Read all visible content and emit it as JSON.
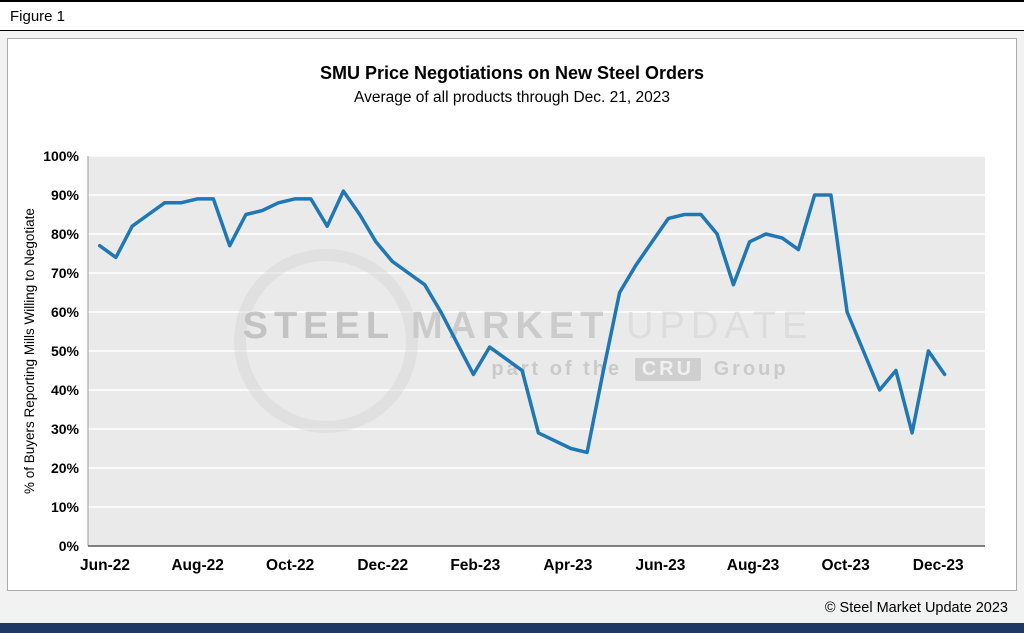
{
  "figure_label": "Figure 1",
  "copyright": "© Steel Market Update 2023",
  "watermark": {
    "word1": "STEEL",
    "word2": "MARKET",
    "word3": "UPDATE",
    "line2_pre": "part of the",
    "badge": "CRU",
    "line2_post": "Group"
  },
  "colors": {
    "line": "#1F77B4",
    "plot_bg": "#EAEAEA",
    "grid": "#FFFFFF",
    "axis": "#595959",
    "footer_bar": "#1F3864",
    "watermark_gray": "#C8C8C8"
  },
  "chart_data": {
    "type": "line",
    "title": "SMU Price Negotiations on New Steel Orders",
    "subtitle": "Average of all products through Dec. 21, 2023",
    "xlabel": "",
    "ylabel": "% of Buyers Reporting Mills Willing to Negotiate",
    "ylim": [
      0,
      100
    ],
    "ytick_step": 10,
    "ytick_suffix": "%",
    "grid": true,
    "legend": false,
    "x_tick_labels": [
      "Jun-22",
      "Aug-22",
      "Oct-22",
      "Dec-22",
      "Feb-23",
      "Apr-23",
      "Jun-23",
      "Aug-23",
      "Oct-23",
      "Dec-23"
    ],
    "series": [
      {
        "name": "% of buyers reporting mills willing to negotiate",
        "values": [
          77,
          74,
          82,
          85,
          88,
          88,
          89,
          89,
          77,
          85,
          86,
          88,
          89,
          89,
          82,
          91,
          85,
          78,
          73,
          70,
          67,
          60,
          52,
          44,
          51,
          48,
          45,
          29,
          27,
          25,
          24,
          45,
          65,
          72,
          78,
          84,
          85,
          85,
          80,
          67,
          78,
          80,
          79,
          76,
          90,
          90,
          60,
          50,
          40,
          45,
          29,
          50,
          44
        ]
      }
    ]
  }
}
